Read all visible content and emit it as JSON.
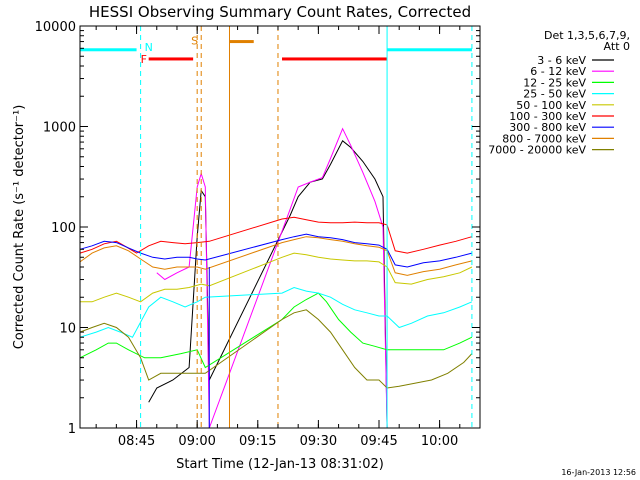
{
  "chart_data": {
    "type": "line",
    "title": "HESSI Observing Summary Count Rates, Corrected",
    "xlabel": "Start Time (12-Jan-13 08:31:02)",
    "ylabel": "Corrected Count Rate (s⁻¹ detector⁻¹)",
    "y_scale": "log",
    "ylim": [
      1,
      10000
    ],
    "x_units": "minutes",
    "xlim": [
      "08:31",
      "10:10"
    ],
    "x_ticks": [
      "08:45",
      "09:00",
      "09:15",
      "09:30",
      "09:45",
      "10:00"
    ],
    "y_ticks": [
      "1",
      "10",
      "100",
      "1000",
      "10000"
    ],
    "legend_header": [
      "Det 1,3,5,6,7,9,",
      "Att 0"
    ],
    "legend_position": "right-outside",
    "timestamp": "16-Jan-2013 12:56",
    "flag_labels": {
      "F": "F",
      "N": "N",
      "S": "S"
    },
    "series": [
      {
        "name": "3 - 6 keV",
        "color": "#000000",
        "points": [
          [
            "08:48",
            1.8
          ],
          [
            "08:50",
            2.5
          ],
          [
            "08:54",
            3
          ],
          [
            "08:58",
            4
          ],
          [
            "09:00",
            80
          ],
          [
            "09:01",
            230
          ],
          [
            "09:02",
            200
          ],
          [
            "09:03",
            3
          ],
          [
            "09:23",
            130
          ],
          [
            "09:25",
            200
          ],
          [
            "09:28",
            280
          ],
          [
            "09:31",
            300
          ],
          [
            "09:33",
            420
          ],
          [
            "09:36",
            720
          ],
          [
            "09:38",
            620
          ],
          [
            "09:41",
            450
          ],
          [
            "09:44",
            300
          ],
          [
            "09:46",
            200
          ],
          [
            "09:47",
            1
          ]
        ]
      },
      {
        "name": "6 - 12 keV",
        "color": "#ff00ff",
        "points": [
          [
            "08:50",
            35
          ],
          [
            "08:52",
            30
          ],
          [
            "08:55",
            35
          ],
          [
            "08:58",
            40
          ],
          [
            "09:00",
            250
          ],
          [
            "09:01",
            340
          ],
          [
            "09:02",
            250
          ],
          [
            "09:03",
            1
          ],
          [
            "09:23",
            150
          ],
          [
            "09:25",
            250
          ],
          [
            "09:28",
            280
          ],
          [
            "09:31",
            310
          ],
          [
            "09:33",
            480
          ],
          [
            "09:36",
            950
          ],
          [
            "09:38",
            650
          ],
          [
            "09:41",
            350
          ],
          [
            "09:44",
            180
          ],
          [
            "09:46",
            100
          ],
          [
            "09:47",
            1
          ]
        ]
      },
      {
        "name": "12 - 25 keV",
        "color": "#00ff00",
        "points": [
          [
            "08:31",
            5
          ],
          [
            "08:35",
            6
          ],
          [
            "08:38",
            7
          ],
          [
            "08:40",
            7
          ],
          [
            "08:43",
            6
          ],
          [
            "08:47",
            5
          ],
          [
            "08:51",
            5
          ],
          [
            "08:56",
            5.5
          ],
          [
            "09:00",
            6
          ],
          [
            "09:02",
            4
          ],
          [
            "09:21",
            12
          ],
          [
            "09:24",
            16
          ],
          [
            "09:27",
            19
          ],
          [
            "09:30",
            22
          ],
          [
            "09:32",
            18
          ],
          [
            "09:35",
            12
          ],
          [
            "09:38",
            9
          ],
          [
            "09:41",
            7
          ],
          [
            "09:44",
            6.5
          ],
          [
            "09:47",
            6
          ],
          [
            "09:51",
            6
          ],
          [
            "09:56",
            6
          ],
          [
            "10:01",
            6
          ],
          [
            "10:05",
            7
          ],
          [
            "10:08",
            8
          ]
        ]
      },
      {
        "name": "25 - 50 keV",
        "color": "#00ffff",
        "points": [
          [
            "08:31",
            8
          ],
          [
            "08:35",
            9
          ],
          [
            "08:38",
            10
          ],
          [
            "08:41",
            9
          ],
          [
            "08:44",
            8
          ],
          [
            "08:48",
            16
          ],
          [
            "08:51",
            20
          ],
          [
            "08:54",
            18
          ],
          [
            "08:57",
            16
          ],
          [
            "09:00",
            18
          ],
          [
            "09:02",
            20
          ],
          [
            "09:21",
            22
          ],
          [
            "09:24",
            25
          ],
          [
            "09:27",
            23
          ],
          [
            "09:30",
            22
          ],
          [
            "09:33",
            20
          ],
          [
            "09:36",
            17
          ],
          [
            "09:39",
            15
          ],
          [
            "09:42",
            14
          ],
          [
            "09:45",
            13
          ],
          [
            "09:47",
            13
          ],
          [
            "09:50",
            10
          ],
          [
            "09:53",
            11
          ],
          [
            "09:57",
            13
          ],
          [
            "10:01",
            14
          ],
          [
            "10:05",
            16
          ],
          [
            "10:08",
            18
          ]
        ]
      },
      {
        "name": "50 - 100 keV",
        "color": "#c8c800",
        "points": [
          [
            "08:31",
            18
          ],
          [
            "08:34",
            18
          ],
          [
            "08:37",
            20
          ],
          [
            "08:40",
            22
          ],
          [
            "08:43",
            20
          ],
          [
            "08:46",
            18
          ],
          [
            "08:49",
            22
          ],
          [
            "08:52",
            24
          ],
          [
            "08:55",
            24
          ],
          [
            "08:58",
            25
          ],
          [
            "09:01",
            27
          ],
          [
            "09:03",
            26
          ],
          [
            "09:21",
            50
          ],
          [
            "09:24",
            55
          ],
          [
            "09:27",
            53
          ],
          [
            "09:30",
            50
          ],
          [
            "09:33",
            48
          ],
          [
            "09:36",
            47
          ],
          [
            "09:39",
            46
          ],
          [
            "09:42",
            46
          ],
          [
            "09:45",
            45
          ],
          [
            "09:47",
            40
          ],
          [
            "09:49",
            28
          ],
          [
            "09:53",
            27
          ],
          [
            "09:57",
            30
          ],
          [
            "10:01",
            32
          ],
          [
            "10:05",
            35
          ],
          [
            "10:08",
            40
          ]
        ]
      },
      {
        "name": "100 - 300 keV",
        "color": "#ff0000",
        "points": [
          [
            "08:31",
            55
          ],
          [
            "08:34",
            60
          ],
          [
            "08:37",
            68
          ],
          [
            "08:40",
            72
          ],
          [
            "08:42",
            65
          ],
          [
            "08:45",
            55
          ],
          [
            "08:48",
            65
          ],
          [
            "08:51",
            72
          ],
          [
            "08:54",
            70
          ],
          [
            "08:57",
            68
          ],
          [
            "09:00",
            70
          ],
          [
            "09:03",
            72
          ],
          [
            "09:21",
            120
          ],
          [
            "09:24",
            125
          ],
          [
            "09:27",
            118
          ],
          [
            "09:30",
            112
          ],
          [
            "09:33",
            110
          ],
          [
            "09:36",
            110
          ],
          [
            "09:39",
            112
          ],
          [
            "09:42",
            110
          ],
          [
            "09:45",
            110
          ],
          [
            "09:47",
            105
          ],
          [
            "09:49",
            58
          ],
          [
            "09:52",
            55
          ],
          [
            "09:56",
            60
          ],
          [
            "10:00",
            66
          ],
          [
            "10:04",
            72
          ],
          [
            "10:08",
            80
          ]
        ]
      },
      {
        "name": "300 - 800 keV",
        "color": "#0000ff",
        "points": [
          [
            "08:31",
            60
          ],
          [
            "08:34",
            65
          ],
          [
            "08:37",
            72
          ],
          [
            "08:40",
            70
          ],
          [
            "08:43",
            62
          ],
          [
            "08:46",
            55
          ],
          [
            "08:49",
            50
          ],
          [
            "08:52",
            48
          ],
          [
            "08:55",
            50
          ],
          [
            "08:58",
            50
          ],
          [
            "09:00",
            48
          ],
          [
            "09:02",
            47
          ],
          [
            "09:21",
            75
          ],
          [
            "09:24",
            80
          ],
          [
            "09:27",
            85
          ],
          [
            "09:30",
            80
          ],
          [
            "09:33",
            78
          ],
          [
            "09:36",
            75
          ],
          [
            "09:39",
            70
          ],
          [
            "09:42",
            68
          ],
          [
            "09:45",
            66
          ],
          [
            "09:47",
            60
          ],
          [
            "09:49",
            42
          ],
          [
            "09:52",
            40
          ],
          [
            "09:56",
            44
          ],
          [
            "10:00",
            46
          ],
          [
            "10:04",
            50
          ],
          [
            "10:08",
            55
          ]
        ]
      },
      {
        "name": "800 - 7000 keV",
        "color": "#e08000",
        "points": [
          [
            "08:31",
            45
          ],
          [
            "08:34",
            55
          ],
          [
            "08:37",
            62
          ],
          [
            "08:40",
            65
          ],
          [
            "08:43",
            58
          ],
          [
            "08:46",
            48
          ],
          [
            "08:49",
            40
          ],
          [
            "08:52",
            38
          ],
          [
            "08:55",
            40
          ],
          [
            "08:58",
            40
          ],
          [
            "09:00",
            40
          ],
          [
            "09:02",
            38
          ],
          [
            "09:21",
            70
          ],
          [
            "09:24",
            75
          ],
          [
            "09:27",
            80
          ],
          [
            "09:30",
            78
          ],
          [
            "09:33",
            75
          ],
          [
            "09:36",
            72
          ],
          [
            "09:39",
            68
          ],
          [
            "09:42",
            65
          ],
          [
            "09:45",
            63
          ],
          [
            "09:47",
            58
          ],
          [
            "09:49",
            35
          ],
          [
            "09:52",
            33
          ],
          [
            "09:56",
            36
          ],
          [
            "10:00",
            38
          ],
          [
            "10:04",
            42
          ],
          [
            "10:08",
            46
          ]
        ]
      },
      {
        "name": "7000 - 20000 keV",
        "color": "#808000",
        "points": [
          [
            "08:31",
            9
          ],
          [
            "08:34",
            10
          ],
          [
            "08:37",
            11
          ],
          [
            "08:40",
            10
          ],
          [
            "08:43",
            8
          ],
          [
            "08:46",
            5
          ],
          [
            "08:48",
            3
          ],
          [
            "08:51",
            3.5
          ],
          [
            "08:55",
            3.5
          ],
          [
            "08:58",
            3.5
          ],
          [
            "09:00",
            3.5
          ],
          [
            "09:02",
            3.5
          ],
          [
            "09:21",
            12
          ],
          [
            "09:24",
            14
          ],
          [
            "09:27",
            15
          ],
          [
            "09:30",
            12
          ],
          [
            "09:33",
            9
          ],
          [
            "09:36",
            6
          ],
          [
            "09:39",
            4
          ],
          [
            "09:42",
            3
          ],
          [
            "09:45",
            3
          ],
          [
            "09:47",
            2.5
          ],
          [
            "09:50",
            2.6
          ],
          [
            "09:54",
            2.8
          ],
          [
            "09:58",
            3
          ],
          [
            "10:02",
            3.5
          ],
          [
            "10:06",
            4.5
          ],
          [
            "10:08",
            5.5
          ]
        ]
      }
    ]
  }
}
